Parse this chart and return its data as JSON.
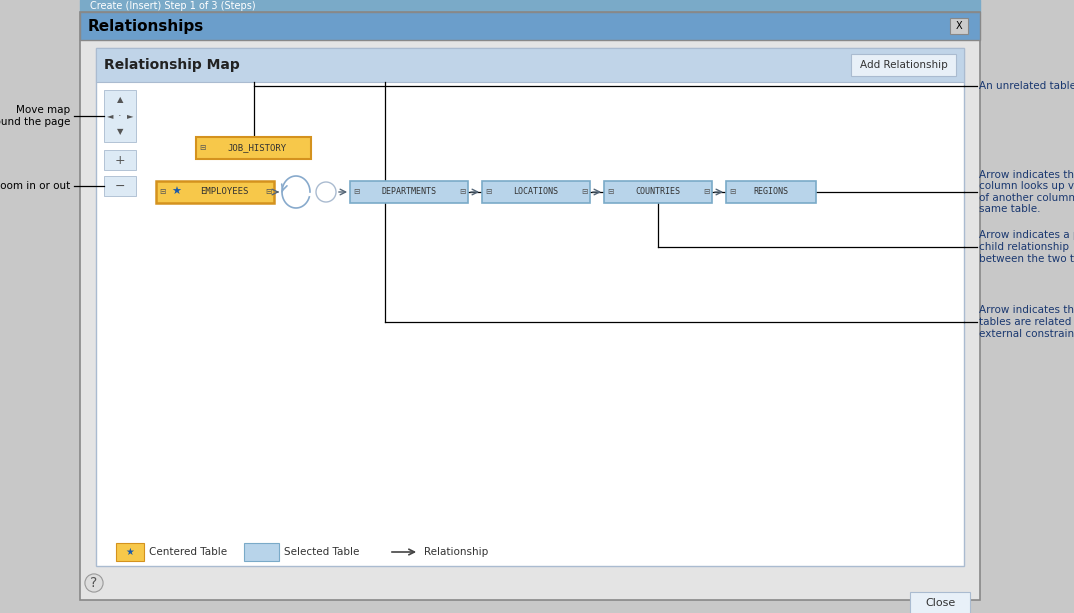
{
  "title": "Relationships",
  "map_title": "Relationship Map",
  "add_rel_btn": "Add Relationship",
  "close_btn": "Close",
  "page_bg": "#c8c8c8",
  "dialog_bg": "#e4e4e4",
  "dialog_border": "#888888",
  "titlebar_color": "#6b9ecb",
  "inner_bg": "#ffffff",
  "inner_border": "#aabbd0",
  "inner_header_bg": "#c0d4e8",
  "nav_bg": "#ddeaf5",
  "nav_border": "#aabbd0",
  "emp_box_color": "#f7c84a",
  "emp_box_border": "#d4921e",
  "blue_box_color": "#b8d4ea",
  "blue_box_border": "#7aaac8",
  "jh_box_color": "#f7c84a",
  "jh_box_border": "#d4921e",
  "ann_color": "#1a3870",
  "left_ann_color": "#000000",
  "line_color": "#000000",
  "connector_color": "#aabbd0",
  "loop_color": "#88aacc",
  "arrow_color": "#556677",
  "btn_bg": "#e8f0f8",
  "btn_border": "#aabbd0",
  "annotations_right": [
    "An unrelated table",
    "Arrow indicates that one\ncolumn looks up values\nof another column in the\nsame table.",
    "Arrow indicates a parent-\nchild relationship\nbetween the two tables.",
    "Arrow indicates that both\ntables are related by an\nexternal constraint."
  ],
  "tables_blue": [
    "DEPARTMENTS",
    "LOCATIONS",
    "COUNTRIES",
    "REGIONS"
  ],
  "top_bar_text": "Create (Insert) Step 1 of 3 (Steps)"
}
